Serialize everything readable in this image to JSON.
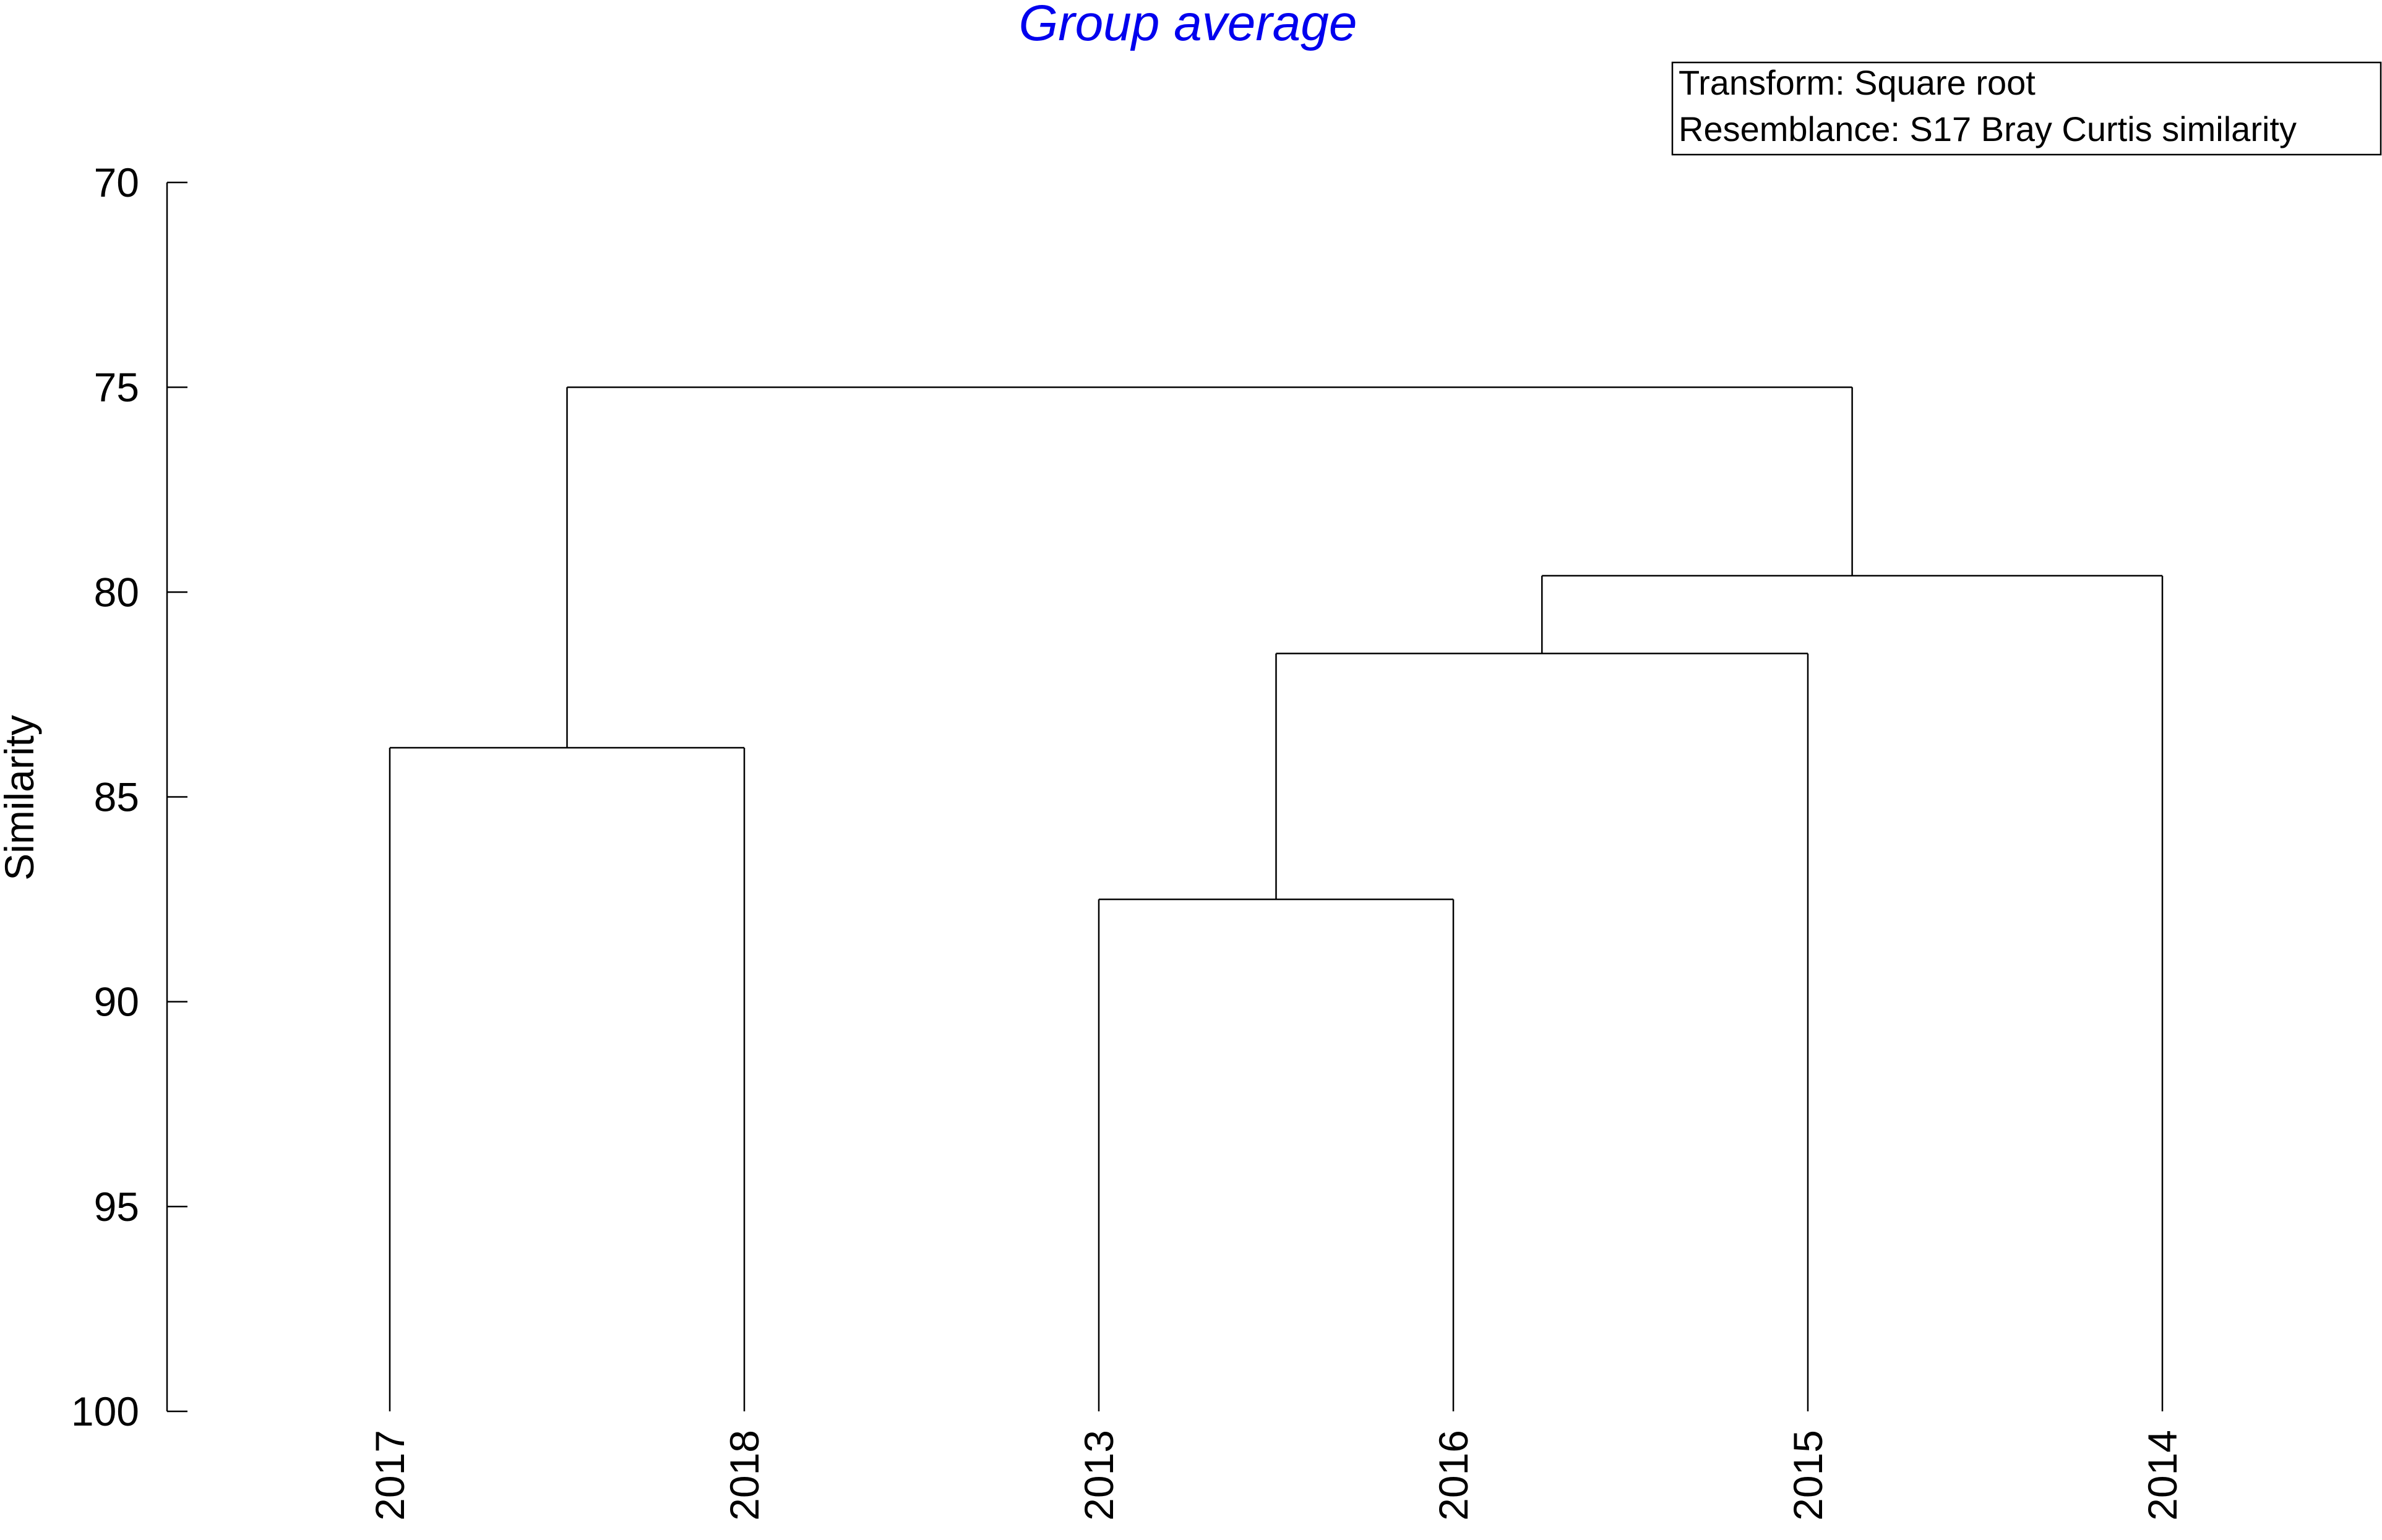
{
  "chart_data": {
    "type": "dendrogram",
    "title": "Group average",
    "ylabel": "Similarity",
    "ylim": [
      70,
      100
    ],
    "y_inverted": true,
    "yticks": [
      70,
      75,
      80,
      85,
      90,
      95,
      100
    ],
    "leaves": [
      "2017",
      "2018",
      "2013",
      "2016",
      "2015",
      "2014"
    ],
    "merges": [
      {
        "left": "2013",
        "right": "2016",
        "similarity": 87.5
      },
      {
        "left": "2017",
        "right": "2018",
        "similarity": 83.8
      },
      {
        "left": "2013+2016",
        "right": "2015",
        "similarity": 81.5
      },
      {
        "left": "2013+2016+2015",
        "right": "2014",
        "similarity": 79.6
      },
      {
        "left": "2017+2018",
        "right": "2013+2016+2015+2014",
        "similarity": 75.0
      }
    ],
    "legend": [
      "Transform: Square root",
      "Resemblance: S17 Bray Curtis similarity"
    ],
    "legend_position": "top-right",
    "grid": false
  }
}
